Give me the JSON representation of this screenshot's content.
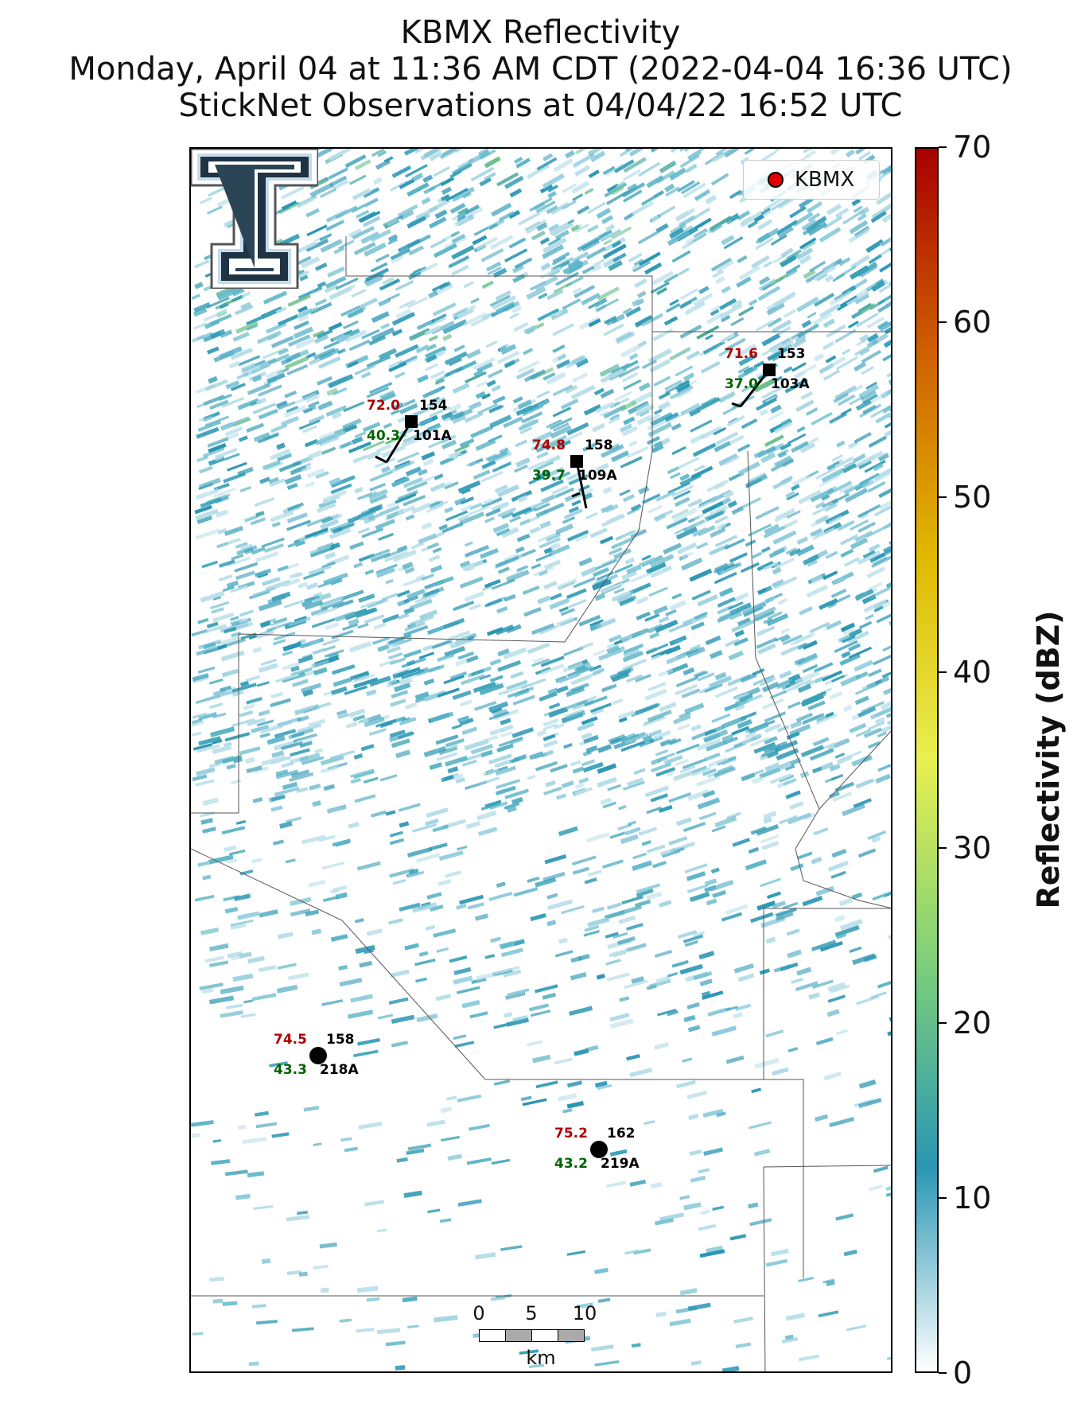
{
  "header": {
    "title_line1": "KBMX Reflectivity",
    "title_line2": "Monday, April 04 at 11:36 AM CDT (2022-04-04 16:36 UTC)",
    "title_line3": "StickNet Observations at 04/04/22 16:52 UTC"
  },
  "legend": {
    "label": "KBMX",
    "marker_color": "#e00000"
  },
  "stations": [
    {
      "id": "101A",
      "temp": "72.0",
      "dew": "40.3",
      "value": "154",
      "marker": "square"
    },
    {
      "id": "109A",
      "temp": "74.8",
      "dew": "39.7",
      "value": "158",
      "marker": "square"
    },
    {
      "id": "103A",
      "temp": "71.6",
      "dew": "37.0",
      "value": "153",
      "marker": "square"
    },
    {
      "id": "218A",
      "temp": "74.5",
      "dew": "43.3",
      "value": "158",
      "marker": "circle"
    },
    {
      "id": "219A",
      "temp": "75.2",
      "dew": "43.2",
      "value": "162",
      "marker": "circle"
    }
  ],
  "scalebar": {
    "labels": [
      "0",
      "5",
      "10"
    ],
    "unit": "km"
  },
  "colorbar": {
    "label": "Reflectivity (dBZ)",
    "ticks": [
      "0",
      "10",
      "20",
      "30",
      "40",
      "50",
      "60",
      "70"
    ],
    "range": [
      0,
      70
    ],
    "colors": [
      "#ffffff",
      "#2a96b4",
      "#7ccf7a",
      "#e8f050",
      "#e0b800",
      "#d06000",
      "#a80000"
    ]
  }
}
